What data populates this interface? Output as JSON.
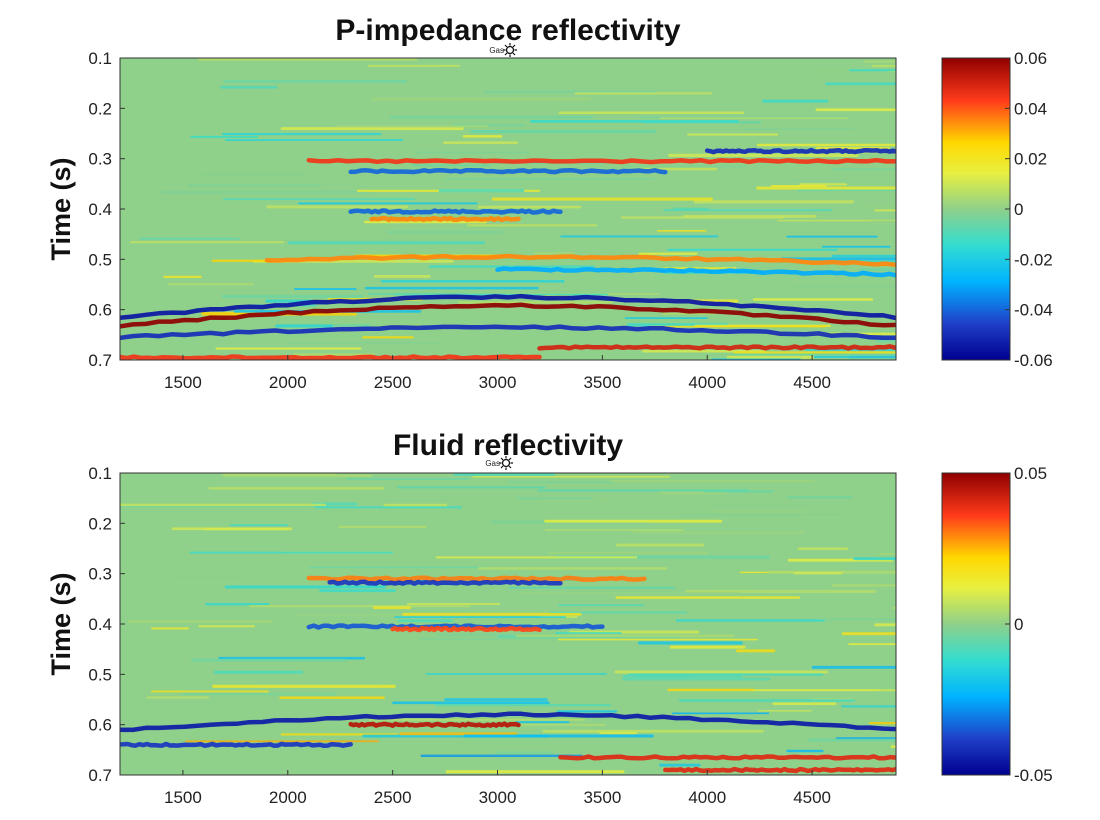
{
  "chart_data": [
    {
      "type": "heatmap",
      "title": "P-impedance reflectivity",
      "xlabel": "",
      "ylabel": "Time (s)",
      "xlim": [
        1200,
        4900
      ],
      "ylim": [
        0.1,
        0.7
      ],
      "y_reversed": true,
      "x_ticks": [
        1500,
        2000,
        2500,
        3000,
        3500,
        4000,
        4500
      ],
      "y_ticks": [
        "0.1",
        "0.2",
        "0.3",
        "0.4",
        "0.5",
        "0.6",
        "0.7"
      ],
      "well_marker": {
        "label": "Gas",
        "x": 3000
      },
      "colorbar": {
        "range": [
          -0.06,
          0.06
        ],
        "tick_labels": [
          "0.06",
          "0.04",
          "0.02",
          "0",
          "-0.02",
          "-0.04",
          "-0.06"
        ],
        "colormap": "jet"
      },
      "reflectors": [
        {
          "time": 0.305,
          "x_from": 2100,
          "x_to": 4900,
          "sign": 1,
          "amplitude": 0.045,
          "bend": 0.0
        },
        {
          "time": 0.325,
          "x_from": 2300,
          "x_to": 3800,
          "sign": -1,
          "amplitude": 0.04,
          "bend": 0.0
        },
        {
          "time": 0.285,
          "x_from": 4000,
          "x_to": 4900,
          "sign": -1,
          "amplitude": 0.05,
          "bend": 0.0
        },
        {
          "time": 0.405,
          "x_from": 2300,
          "x_to": 3300,
          "sign": -1,
          "amplitude": 0.04,
          "bend": 0.0
        },
        {
          "time": 0.42,
          "x_from": 2400,
          "x_to": 3100,
          "sign": 1,
          "amplitude": 0.035,
          "bend": 0.0
        },
        {
          "time": 0.51,
          "x_from": 1900,
          "x_to": 4900,
          "sign": 1,
          "amplitude": 0.035,
          "bend": -0.015
        },
        {
          "time": 0.53,
          "x_from": 3000,
          "x_to": 4900,
          "sign": -1,
          "amplitude": 0.03,
          "bend": -0.01
        },
        {
          "time": 0.615,
          "x_from": 1200,
          "x_to": 4900,
          "sign": -1,
          "amplitude": 0.055,
          "bend": -0.04
        },
        {
          "time": 0.632,
          "x_from": 1200,
          "x_to": 4900,
          "sign": 1,
          "amplitude": 0.06,
          "bend": -0.04
        },
        {
          "time": 0.655,
          "x_from": 1200,
          "x_to": 4900,
          "sign": -1,
          "amplitude": 0.05,
          "bend": -0.02
        },
        {
          "time": 0.675,
          "x_from": 3200,
          "x_to": 4900,
          "sign": 1,
          "amplitude": 0.05,
          "bend": 0.0
        },
        {
          "time": 0.695,
          "x_from": 1200,
          "x_to": 3200,
          "sign": 1,
          "amplitude": 0.045,
          "bend": 0.0
        }
      ]
    },
    {
      "type": "heatmap",
      "title": "Fluid reflectivity",
      "xlabel": "",
      "ylabel": "Time (s)",
      "xlim": [
        1200,
        4900
      ],
      "ylim": [
        0.1,
        0.7
      ],
      "y_reversed": true,
      "x_ticks": [
        1500,
        2000,
        2500,
        3000,
        3500,
        4000,
        4500
      ],
      "y_ticks": [
        "0.1",
        "0.2",
        "0.3",
        "0.4",
        "0.5",
        "0.6",
        "0.7"
      ],
      "well_marker": {
        "label": "Gas",
        "x": 3000
      },
      "colorbar": {
        "range": [
          -0.05,
          0.05
        ],
        "tick_labels": [
          "0.05",
          "0",
          "-0.05"
        ],
        "colormap": "jet"
      },
      "reflectors": [
        {
          "time": 0.31,
          "x_from": 2100,
          "x_to": 3700,
          "sign": 1,
          "amplitude": 0.03,
          "bend": 0.0
        },
        {
          "time": 0.318,
          "x_from": 2200,
          "x_to": 3300,
          "sign": -1,
          "amplitude": 0.04,
          "bend": 0.0
        },
        {
          "time": 0.405,
          "x_from": 2100,
          "x_to": 3500,
          "sign": -1,
          "amplitude": 0.035,
          "bend": 0.0
        },
        {
          "time": 0.41,
          "x_from": 2500,
          "x_to": 3200,
          "sign": 1,
          "amplitude": 0.035,
          "bend": 0.0
        },
        {
          "time": 0.6,
          "x_from": 2300,
          "x_to": 3100,
          "sign": 1,
          "amplitude": 0.045,
          "bend": 0.0
        },
        {
          "time": 0.61,
          "x_from": 1200,
          "x_to": 4900,
          "sign": -1,
          "amplitude": 0.045,
          "bend": -0.03
        },
        {
          "time": 0.64,
          "x_from": 1200,
          "x_to": 2300,
          "sign": -1,
          "amplitude": 0.04,
          "bend": 0.0
        },
        {
          "time": 0.665,
          "x_from": 3300,
          "x_to": 4900,
          "sign": 1,
          "amplitude": 0.04,
          "bend": 0.0
        },
        {
          "time": 0.69,
          "x_from": 3800,
          "x_to": 4900,
          "sign": 1,
          "amplitude": 0.04,
          "bend": 0.0
        }
      ]
    }
  ]
}
